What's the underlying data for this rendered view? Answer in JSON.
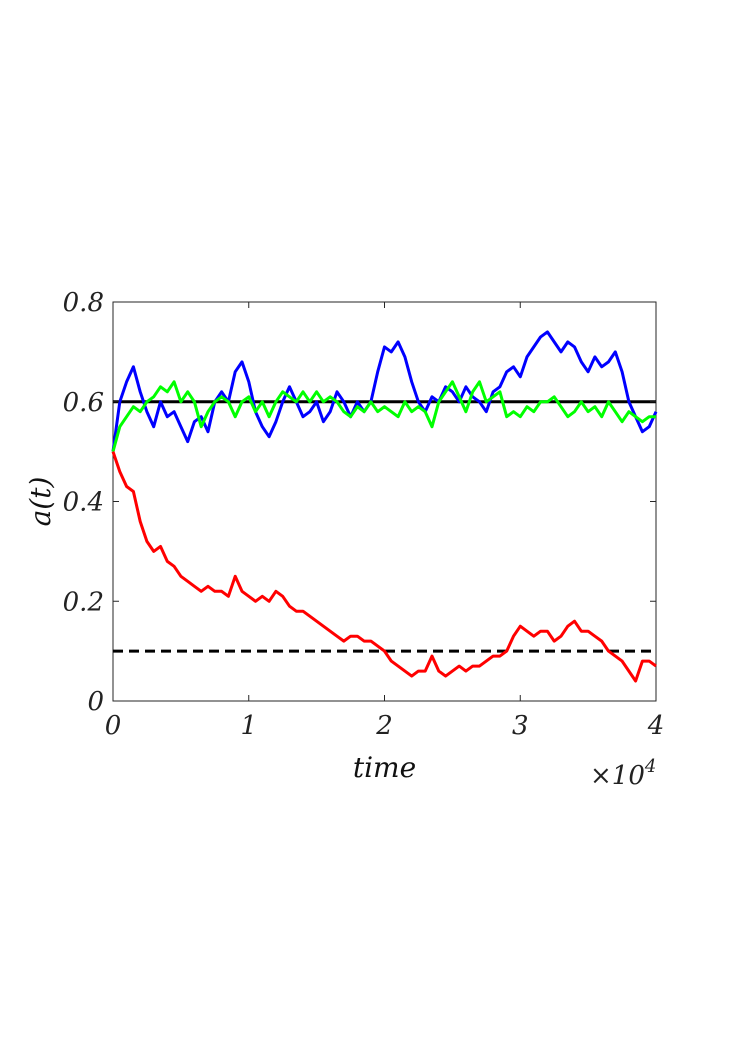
{
  "chart_data": {
    "type": "line",
    "xlabel": "time",
    "ylabel": "a(t)",
    "x_multiplier_label": "×10",
    "x_multiplier_exponent": "4",
    "xlim": [
      0,
      4
    ],
    "ylim": [
      0,
      0.8
    ],
    "xticks": [
      0,
      1,
      2,
      3,
      4
    ],
    "xtick_labels": [
      "0",
      "1",
      "2",
      "3",
      "4"
    ],
    "yticks": [
      0,
      0.2,
      0.4,
      0.6,
      0.8
    ],
    "ytick_labels": [
      "0",
      "0.2",
      "0.4",
      "0.6",
      "0.8"
    ],
    "grid": false,
    "reference_lines": [
      {
        "y": 0.6,
        "style": "solid",
        "color": "#000000"
      },
      {
        "y": 0.1,
        "style": "dashed",
        "color": "#000000"
      }
    ],
    "series": [
      {
        "color": "#0000ff",
        "x": [
          0,
          0.05,
          0.1,
          0.15,
          0.2,
          0.25,
          0.3,
          0.35,
          0.4,
          0.45,
          0.5,
          0.55,
          0.6,
          0.65,
          0.7,
          0.75,
          0.8,
          0.85,
          0.9,
          0.95,
          1.0,
          1.05,
          1.1,
          1.15,
          1.2,
          1.25,
          1.3,
          1.35,
          1.4,
          1.45,
          1.5,
          1.55,
          1.6,
          1.65,
          1.7,
          1.75,
          1.8,
          1.85,
          1.9,
          1.95,
          2.0,
          2.05,
          2.1,
          2.15,
          2.2,
          2.25,
          2.3,
          2.35,
          2.4,
          2.45,
          2.5,
          2.55,
          2.6,
          2.65,
          2.7,
          2.75,
          2.8,
          2.85,
          2.9,
          2.95,
          3.0,
          3.05,
          3.1,
          3.15,
          3.2,
          3.25,
          3.3,
          3.35,
          3.4,
          3.45,
          3.5,
          3.55,
          3.6,
          3.65,
          3.7,
          3.75,
          3.8,
          3.85,
          3.9,
          3.95,
          4.0
        ],
        "y": [
          0.5,
          0.6,
          0.64,
          0.67,
          0.62,
          0.58,
          0.55,
          0.6,
          0.57,
          0.58,
          0.55,
          0.52,
          0.56,
          0.57,
          0.54,
          0.6,
          0.62,
          0.6,
          0.66,
          0.68,
          0.64,
          0.58,
          0.55,
          0.53,
          0.56,
          0.6,
          0.63,
          0.6,
          0.57,
          0.58,
          0.6,
          0.56,
          0.58,
          0.62,
          0.6,
          0.57,
          0.6,
          0.58,
          0.6,
          0.66,
          0.71,
          0.7,
          0.72,
          0.69,
          0.64,
          0.6,
          0.58,
          0.61,
          0.6,
          0.63,
          0.62,
          0.6,
          0.63,
          0.61,
          0.6,
          0.58,
          0.62,
          0.63,
          0.66,
          0.67,
          0.65,
          0.69,
          0.71,
          0.73,
          0.74,
          0.72,
          0.7,
          0.72,
          0.71,
          0.68,
          0.66,
          0.69,
          0.67,
          0.68,
          0.7,
          0.66,
          0.6,
          0.57,
          0.54,
          0.55,
          0.58
        ]
      },
      {
        "color": "#00ff00",
        "x": [
          0,
          0.05,
          0.1,
          0.15,
          0.2,
          0.25,
          0.3,
          0.35,
          0.4,
          0.45,
          0.5,
          0.55,
          0.6,
          0.65,
          0.7,
          0.75,
          0.8,
          0.85,
          0.9,
          0.95,
          1.0,
          1.05,
          1.1,
          1.15,
          1.2,
          1.25,
          1.3,
          1.35,
          1.4,
          1.45,
          1.5,
          1.55,
          1.6,
          1.65,
          1.7,
          1.75,
          1.8,
          1.85,
          1.9,
          1.95,
          2.0,
          2.05,
          2.1,
          2.15,
          2.2,
          2.25,
          2.3,
          2.35,
          2.4,
          2.45,
          2.5,
          2.55,
          2.6,
          2.65,
          2.7,
          2.75,
          2.8,
          2.85,
          2.9,
          2.95,
          3.0,
          3.05,
          3.1,
          3.15,
          3.2,
          3.25,
          3.3,
          3.35,
          3.4,
          3.45,
          3.5,
          3.55,
          3.6,
          3.65,
          3.7,
          3.75,
          3.8,
          3.85,
          3.9,
          3.95,
          4.0
        ],
        "y": [
          0.5,
          0.55,
          0.57,
          0.59,
          0.58,
          0.6,
          0.61,
          0.63,
          0.62,
          0.64,
          0.6,
          0.62,
          0.6,
          0.55,
          0.58,
          0.6,
          0.61,
          0.6,
          0.57,
          0.6,
          0.61,
          0.58,
          0.6,
          0.57,
          0.6,
          0.62,
          0.61,
          0.6,
          0.62,
          0.6,
          0.62,
          0.6,
          0.61,
          0.6,
          0.58,
          0.57,
          0.59,
          0.58,
          0.6,
          0.58,
          0.59,
          0.58,
          0.57,
          0.6,
          0.58,
          0.59,
          0.58,
          0.55,
          0.6,
          0.62,
          0.64,
          0.61,
          0.58,
          0.62,
          0.64,
          0.6,
          0.61,
          0.62,
          0.57,
          0.58,
          0.57,
          0.59,
          0.58,
          0.6,
          0.6,
          0.61,
          0.59,
          0.57,
          0.58,
          0.6,
          0.58,
          0.59,
          0.57,
          0.6,
          0.58,
          0.56,
          0.58,
          0.57,
          0.56,
          0.57,
          0.57
        ]
      },
      {
        "color": "#ff0000",
        "x": [
          0,
          0.05,
          0.1,
          0.15,
          0.2,
          0.25,
          0.3,
          0.35,
          0.4,
          0.45,
          0.5,
          0.55,
          0.6,
          0.65,
          0.7,
          0.75,
          0.8,
          0.85,
          0.9,
          0.95,
          1.0,
          1.05,
          1.1,
          1.15,
          1.2,
          1.25,
          1.3,
          1.35,
          1.4,
          1.45,
          1.5,
          1.55,
          1.6,
          1.65,
          1.7,
          1.75,
          1.8,
          1.85,
          1.9,
          1.95,
          2.0,
          2.05,
          2.1,
          2.15,
          2.2,
          2.25,
          2.3,
          2.35,
          2.4,
          2.45,
          2.5,
          2.55,
          2.6,
          2.65,
          2.7,
          2.75,
          2.8,
          2.85,
          2.9,
          2.95,
          3.0,
          3.05,
          3.1,
          3.15,
          3.2,
          3.25,
          3.3,
          3.35,
          3.4,
          3.45,
          3.5,
          3.55,
          3.6,
          3.65,
          3.7,
          3.75,
          3.8,
          3.85,
          3.9,
          3.95,
          4.0
        ],
        "y": [
          0.5,
          0.46,
          0.43,
          0.42,
          0.36,
          0.32,
          0.3,
          0.31,
          0.28,
          0.27,
          0.25,
          0.24,
          0.23,
          0.22,
          0.23,
          0.22,
          0.22,
          0.21,
          0.25,
          0.22,
          0.21,
          0.2,
          0.21,
          0.2,
          0.22,
          0.21,
          0.19,
          0.18,
          0.18,
          0.17,
          0.16,
          0.15,
          0.14,
          0.13,
          0.12,
          0.13,
          0.13,
          0.12,
          0.12,
          0.11,
          0.1,
          0.08,
          0.07,
          0.06,
          0.05,
          0.06,
          0.06,
          0.09,
          0.06,
          0.05,
          0.06,
          0.07,
          0.06,
          0.07,
          0.07,
          0.08,
          0.09,
          0.09,
          0.1,
          0.13,
          0.15,
          0.14,
          0.13,
          0.14,
          0.14,
          0.12,
          0.13,
          0.15,
          0.16,
          0.14,
          0.14,
          0.13,
          0.12,
          0.1,
          0.09,
          0.08,
          0.06,
          0.04,
          0.08,
          0.08,
          0.07
        ]
      }
    ]
  }
}
